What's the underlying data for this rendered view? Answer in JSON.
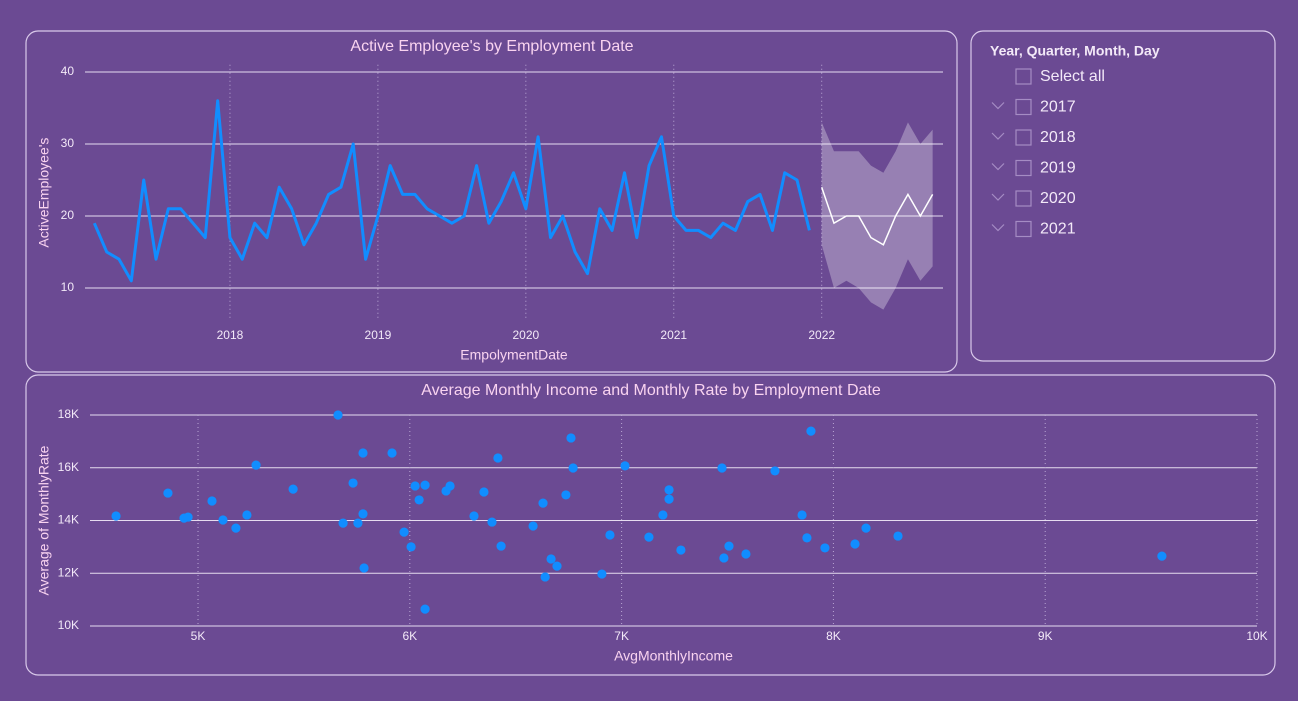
{
  "chart_data": [
    {
      "type": "line",
      "title": "Active Employee's by Employment Date",
      "x_label": "EmpolymentDate",
      "y_label": "ActiveEmployee's",
      "x": [
        2017.083,
        2017.167,
        2017.25,
        2017.333,
        2017.417,
        2017.5,
        2017.583,
        2017.667,
        2017.75,
        2017.833,
        2017.917,
        2018,
        2018.083,
        2018.167,
        2018.25,
        2018.333,
        2018.417,
        2018.5,
        2018.583,
        2018.667,
        2018.75,
        2018.833,
        2018.917,
        2019,
        2019.083,
        2019.167,
        2019.25,
        2019.333,
        2019.417,
        2019.5,
        2019.583,
        2019.667,
        2019.75,
        2019.833,
        2019.917,
        2020,
        2020.083,
        2020.167,
        2020.25,
        2020.333,
        2020.417,
        2020.5,
        2020.583,
        2020.667,
        2020.75,
        2020.833,
        2020.917,
        2021,
        2021.083,
        2021.167,
        2021.25,
        2021.333,
        2021.417,
        2021.5,
        2021.583,
        2021.667,
        2021.75,
        2021.833,
        2021.917
      ],
      "values": [
        19,
        15,
        14,
        11,
        25,
        14,
        21,
        21,
        19,
        17,
        36,
        17,
        14,
        19,
        17,
        24,
        21,
        16,
        19,
        23,
        24,
        30,
        14,
        20,
        27,
        23,
        23,
        21,
        20,
        19,
        20,
        27,
        19,
        22,
        26,
        21,
        31,
        17,
        20,
        15,
        12,
        21,
        18,
        26,
        17,
        27,
        31,
        20,
        18,
        18,
        17,
        19,
        18,
        22,
        23,
        18,
        26,
        25,
        18
      ],
      "color": "#118dff",
      "forecast": {
        "x": [
          2022,
          2022.083,
          2022.167,
          2022.25,
          2022.333,
          2022.417,
          2022.5,
          2022.583,
          2022.667,
          2022.75
        ],
        "values": [
          24,
          19,
          20,
          20,
          17,
          16,
          20,
          23,
          20,
          23
        ],
        "upper": [
          33,
          29,
          29,
          29,
          27,
          26,
          29,
          33,
          30,
          32
        ],
        "lower": [
          16,
          10,
          11,
          10,
          8,
          7,
          10,
          14,
          11,
          13
        ],
        "color": "#ffffff"
      },
      "xlim": [
        2017.02,
        2022.82
      ],
      "xticks": [
        2018,
        2019,
        2020,
        2021,
        2022
      ],
      "ylim": [
        5.5,
        41
      ],
      "yticks": [
        10,
        20,
        30,
        40
      ],
      "grid": true
    },
    {
      "type": "scatter",
      "title": "Average Monthly Income and Monthly Rate by Employment Date",
      "x_label": "AvgMonthlyIncome",
      "y_label": "Average of MonthlyRate",
      "x": [
        4613,
        4858,
        4934,
        4953,
        5066,
        5118,
        5179,
        5231,
        5274,
        5449,
        5661,
        5685,
        5732,
        5755,
        5779,
        5779,
        5784,
        5916,
        5973,
        6006,
        6025,
        6044,
        6072,
        6072,
        6171,
        6190,
        6303,
        6350,
        6388,
        6416,
        6431,
        6582,
        6629,
        6639,
        6667,
        6695,
        6737,
        6761,
        6771,
        6907,
        6945,
        7016,
        7129,
        7195,
        7224,
        7224,
        7280,
        7474,
        7483,
        7507,
        7587,
        7724,
        7852,
        7875,
        7894,
        7960,
        8102,
        8154,
        8305,
        9551
      ],
      "values": [
        14170,
        15040,
        14090,
        14130,
        14740,
        14020,
        13710,
        14210,
        16100,
        15190,
        18000,
        13900,
        15420,
        13900,
        16560,
        14250,
        12200,
        16560,
        13560,
        13000,
        15310,
        14780,
        15340,
        10640,
        15120,
        15310,
        14170,
        15080,
        13940,
        16370,
        13030,
        13790,
        14660,
        11860,
        12540,
        12270,
        14970,
        17130,
        15990,
        11970,
        13450,
        16070,
        13370,
        14210,
        15160,
        14810,
        12880,
        15990,
        12580,
        13030,
        12730,
        15880,
        14210,
        13340,
        17390,
        12960,
        13110,
        13710,
        13410,
        12650
      ],
      "color": "#118dff",
      "xlim": [
        4490,
        10000
      ],
      "xticks": [
        {
          "value": 5000,
          "label": "5K"
        },
        {
          "value": 6000,
          "label": "6K"
        },
        {
          "value": 7000,
          "label": "7K"
        },
        {
          "value": 8000,
          "label": "8K"
        },
        {
          "value": 9000,
          "label": "9K"
        },
        {
          "value": 10000,
          "label": "10K"
        }
      ],
      "ylim": [
        10000,
        18000
      ],
      "yticks": [
        {
          "value": 10000,
          "label": "10K"
        },
        {
          "value": 12000,
          "label": "12K"
        },
        {
          "value": 14000,
          "label": "14K"
        },
        {
          "value": 16000,
          "label": "16K"
        },
        {
          "value": 18000,
          "label": "18K"
        }
      ],
      "grid": true
    }
  ],
  "slicer": {
    "title": "Year, Quarter, Month, Day",
    "items": [
      "Select all",
      "2017",
      "2018",
      "2019",
      "2020",
      "2021"
    ]
  }
}
